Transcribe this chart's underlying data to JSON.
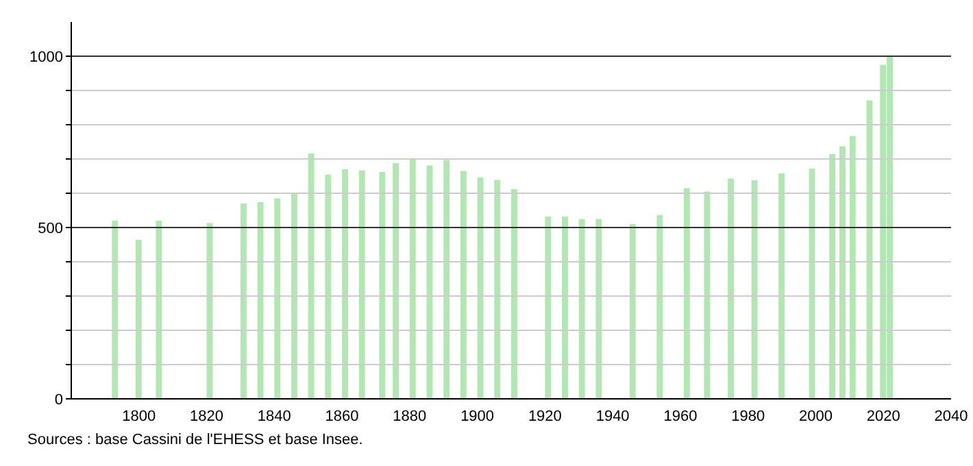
{
  "chart_data": {
    "type": "bar",
    "x": [
      1793,
      1800,
      1806,
      1821,
      1831,
      1836,
      1841,
      1846,
      1851,
      1856,
      1861,
      1866,
      1872,
      1876,
      1881,
      1886,
      1891,
      1896,
      1901,
      1906,
      1911,
      1921,
      1926,
      1931,
      1936,
      1946,
      1954,
      1962,
      1968,
      1975,
      1982,
      1990,
      1999,
      2005,
      2008,
      2011,
      2016,
      2020,
      2022
    ],
    "values": [
      520,
      464,
      520,
      513,
      570,
      574,
      585,
      600,
      716,
      654,
      670,
      667,
      662,
      688,
      700,
      681,
      697,
      665,
      646,
      639,
      612,
      532,
      532,
      525,
      525,
      510,
      536,
      615,
      605,
      643,
      638,
      658,
      672,
      714,
      737,
      767,
      871,
      975,
      999
    ],
    "color": "#b3e6b3",
    "xlim": [
      1780,
      2040
    ],
    "xticks": [
      1800,
      1820,
      1840,
      1860,
      1880,
      1900,
      1920,
      1940,
      1960,
      1980,
      2000,
      2020,
      2040
    ],
    "ylim": [
      0,
      1100
    ],
    "yticks": [
      0,
      {
        "value": 100,
        "label": null
      },
      {
        "value": 200,
        "label": null
      },
      {
        "value": 300,
        "label": null
      },
      {
        "value": 400,
        "label": null
      },
      500,
      {
        "value": 600,
        "label": null
      },
      {
        "value": 700,
        "label": null
      },
      {
        "value": 800,
        "label": null
      },
      {
        "value": 900,
        "label": null
      },
      1000
    ],
    "grid": "y",
    "annotations": [
      "Sources : base Cassini de l'EHESS et base Insee."
    ]
  }
}
